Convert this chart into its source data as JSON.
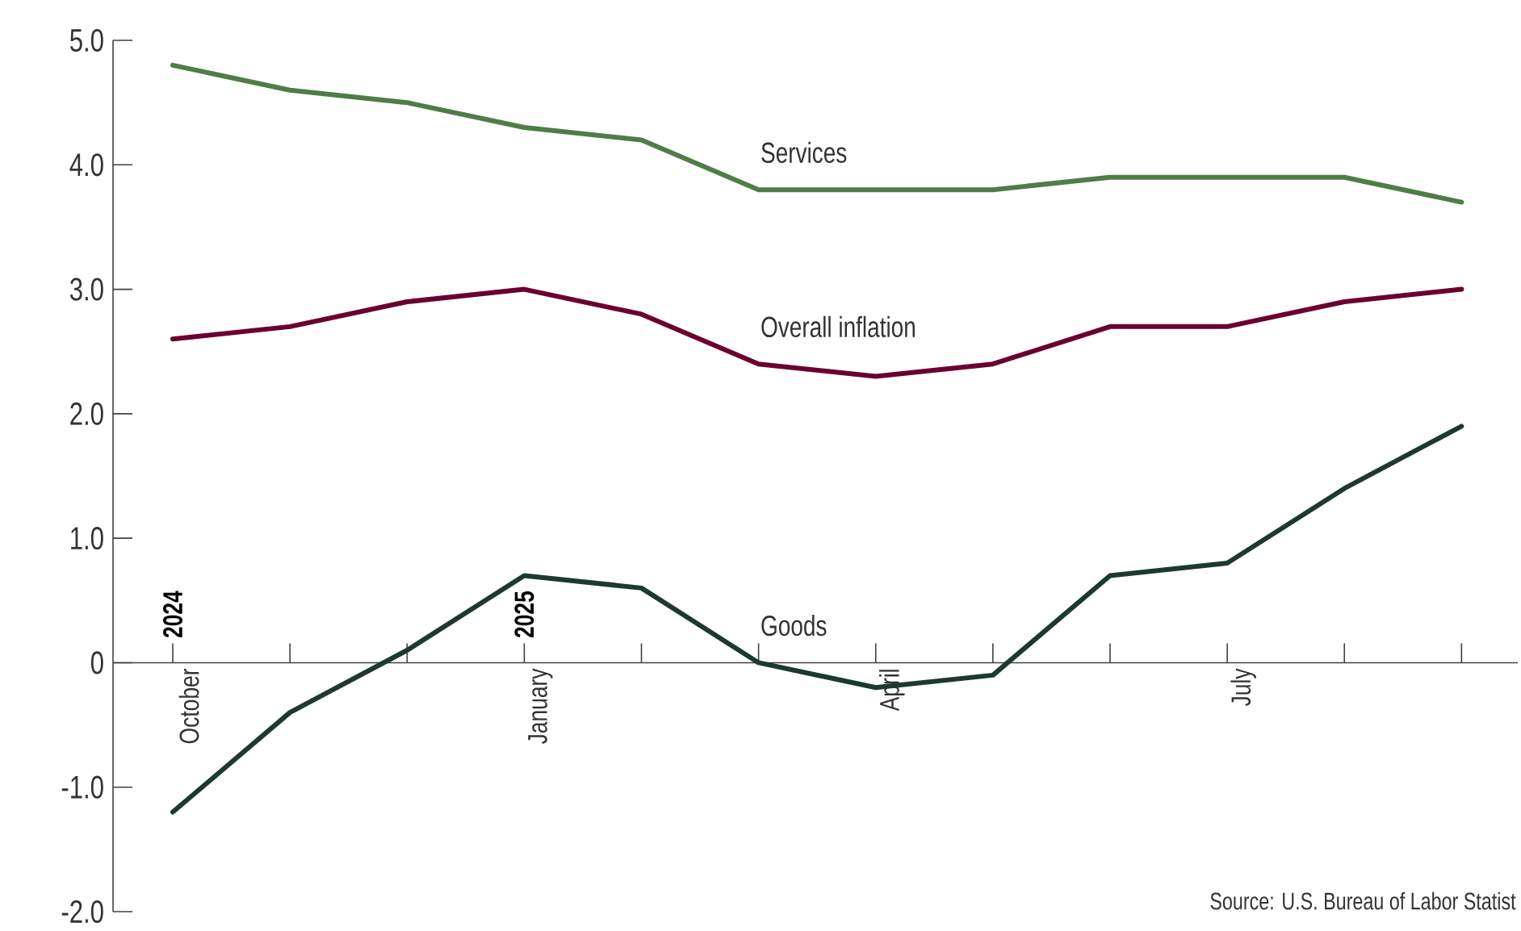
{
  "chart_data": {
    "type": "line",
    "categories": [
      "October",
      null,
      null,
      "January",
      null,
      null,
      "April",
      null,
      null,
      "July",
      null,
      null
    ],
    "series": [
      {
        "name": "Services",
        "color": "#4e7d45",
        "values": [
          4.8,
          4.6,
          4.5,
          4.3,
          4.2,
          3.8,
          3.8,
          3.8,
          3.9,
          3.9,
          3.9,
          3.7
        ]
      },
      {
        "name": "Overall inflation",
        "color": "#6b0030",
        "values": [
          2.6,
          2.7,
          2.9,
          3.0,
          2.8,
          2.4,
          2.3,
          2.4,
          2.7,
          2.7,
          2.9,
          3.0
        ]
      },
      {
        "name": "Goods",
        "color": "#1c3a2e",
        "values": [
          -1.2,
          -0.4,
          0.1,
          0.7,
          0.6,
          0.0,
          -0.2,
          -0.1,
          0.7,
          0.8,
          1.4,
          1.9
        ]
      }
    ],
    "ylim": [
      -2,
      5
    ],
    "yticks": [
      {
        "value": 5,
        "label": "5.0"
      },
      {
        "value": 4,
        "label": "4.0"
      },
      {
        "value": 3,
        "label": "3.0"
      },
      {
        "value": 2,
        "label": "2.0"
      },
      {
        "value": 1,
        "label": "1.0"
      },
      0,
      {
        "value": -1,
        "label": "-1.0"
      },
      {
        "value": -2,
        "label": "-2.0"
      }
    ],
    "grid": false,
    "annotations": [
      "Source: U.S. Bureau of Labor Statist",
      "**2024**",
      "**2025**"
    ]
  }
}
